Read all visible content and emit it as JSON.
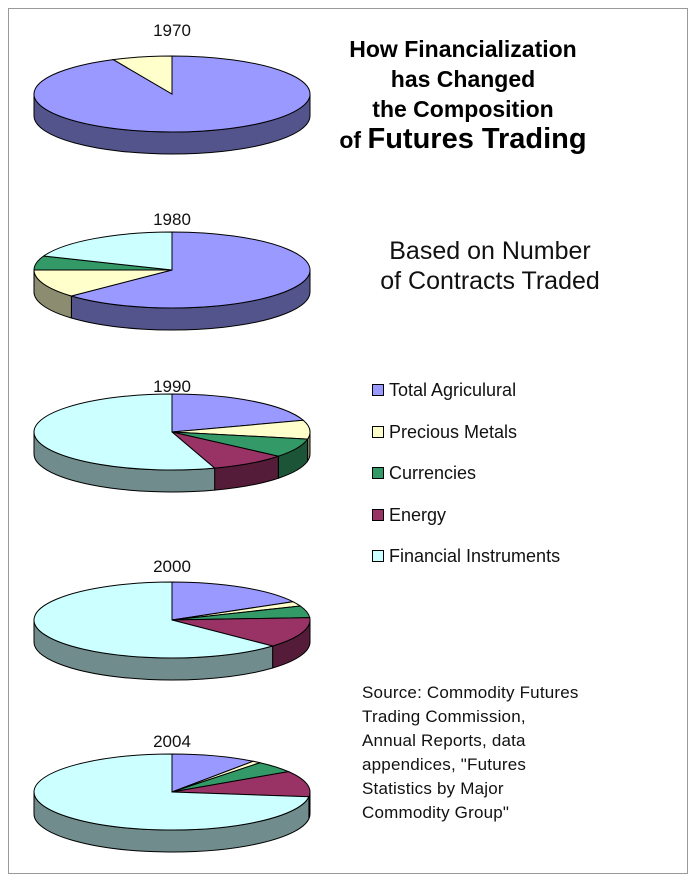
{
  "title": [
    "How Financialization",
    "has Changed",
    "the Composition"
  ],
  "title_last": {
    "prefix": "of ",
    "emphasis": "Futures Trading"
  },
  "subtitle": [
    "Based on Number",
    "of Contracts Traded"
  ],
  "source": [
    "Source: Commodity Futures",
    "Trading Commission,",
    "Annual Reports, data",
    "appendices, \"Futures",
    "Statistics by Major",
    "Commodity Group\""
  ],
  "colors": {
    "Total Agricultural": "#9999ff",
    "Precious Metals": "#ffffcc",
    "Currencies": "#339966",
    "Energy": "#993366",
    "Financial Instruments": "#ccffff"
  },
  "legend": [
    {
      "key": "Total Agricultural",
      "label": "Total Agriculural"
    },
    {
      "key": "Precious Metals",
      "label": "Precious Metals"
    },
    {
      "key": "Currencies",
      "label": "Currencies"
    },
    {
      "key": "Energy",
      "label": "Energy"
    },
    {
      "key": "Financial Instruments",
      "label": "Financial Instruments"
    }
  ],
  "chart_data": {
    "type": "pie",
    "style": "3d",
    "unit": "share of contracts traded (%)",
    "categories": [
      "Total Agricultural",
      "Precious Metals",
      "Currencies",
      "Energy",
      "Financial Instruments"
    ],
    "pies": [
      {
        "label": "1970",
        "values": [
          93,
          7,
          0,
          0,
          0
        ]
      },
      {
        "label": "1980",
        "values": [
          63,
          12,
          6,
          0,
          19
        ]
      },
      {
        "label": "1990",
        "values": [
          20,
          8,
          8,
          9,
          55
        ]
      },
      {
        "label": "2000",
        "values": [
          17,
          2,
          5,
          13,
          63
        ]
      },
      {
        "label": "2004",
        "values": [
          10,
          1,
          5,
          11,
          73
        ]
      }
    ]
  }
}
